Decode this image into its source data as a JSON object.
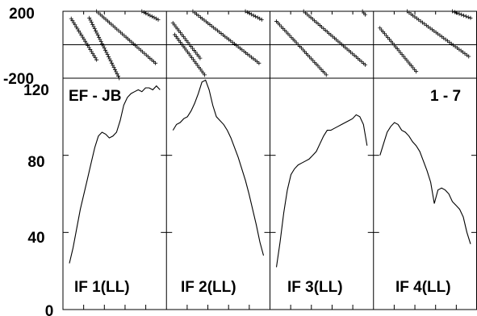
{
  "chart_data": {
    "type": "line",
    "baseline_label": "EF - JB",
    "channel_label": "1 - 7",
    "phase_axis": {
      "ylim": [
        -200,
        200
      ],
      "ticks": [
        "200",
        "-200"
      ]
    },
    "amp_axis": {
      "ylim": [
        0,
        120
      ],
      "ticks": [
        "120",
        "80",
        "40",
        "0"
      ]
    },
    "panels": [
      {
        "name": "IF 1(LL)",
        "amp_x": [
          0,
          0.04,
          0.08,
          0.12,
          0.16,
          0.2,
          0.24,
          0.28,
          0.32,
          0.36,
          0.4,
          0.44,
          0.48,
          0.52,
          0.56,
          0.6,
          0.64,
          0.68,
          0.72,
          0.76,
          0.8,
          0.84,
          0.88,
          0.92,
          0.96,
          1.0
        ],
        "amp_y": [
          24,
          32,
          42,
          52,
          60,
          68,
          76,
          84,
          90,
          92,
          91,
          89,
          90,
          92,
          98,
          106,
          110,
          112,
          113,
          114,
          113,
          115,
          115,
          114,
          116,
          114
        ],
        "phase_segments": [
          [
            [
              0.02,
              156
            ],
            [
              0.3,
              -90
            ]
          ],
          [
            [
              0.22,
              160
            ],
            [
              0.55,
              -200
            ]
          ],
          [
            [
              0.3,
              200
            ],
            [
              0.95,
              -110
            ]
          ],
          [
            [
              0.8,
              200
            ],
            [
              0.98,
              150
            ]
          ]
        ]
      },
      {
        "name": "IF 2(LL)",
        "amp_x": [
          0,
          0.04,
          0.08,
          0.12,
          0.16,
          0.2,
          0.24,
          0.28,
          0.32,
          0.36,
          0.4,
          0.44,
          0.48,
          0.52,
          0.56,
          0.6,
          0.64,
          0.68,
          0.72,
          0.76,
          0.8,
          0.84,
          0.88,
          0.92,
          0.96,
          1.0
        ],
        "amp_y": [
          93,
          96,
          97,
          99,
          100,
          103,
          107,
          112,
          118,
          119,
          114,
          106,
          100,
          98,
          96,
          93,
          89,
          84,
          79,
          73,
          67,
          60,
          52,
          44,
          35,
          28
        ],
        "phase_segments": [
          [
            [
              0.0,
              130
            ],
            [
              0.3,
              -80
            ]
          ],
          [
            [
              0.02,
              60
            ],
            [
              0.35,
              -180
            ]
          ],
          [
            [
              0.22,
              200
            ],
            [
              0.95,
              -110
            ]
          ],
          [
            [
              0.8,
              200
            ],
            [
              0.98,
              150
            ]
          ]
        ]
      },
      {
        "name": "IF 3(LL)",
        "amp_x": [
          0,
          0.04,
          0.08,
          0.12,
          0.16,
          0.2,
          0.24,
          0.28,
          0.32,
          0.36,
          0.4,
          0.44,
          0.48,
          0.52,
          0.56,
          0.6,
          0.64,
          0.68,
          0.72,
          0.76,
          0.8,
          0.84,
          0.88,
          0.92,
          0.96,
          1.0
        ],
        "amp_y": [
          22,
          35,
          50,
          62,
          70,
          73,
          75,
          76,
          77,
          78,
          80,
          82,
          86,
          90,
          93,
          93,
          94,
          95,
          96,
          97,
          98,
          99,
          101,
          100,
          96,
          85
        ],
        "phase_segments": [
          [
            [
              0.0,
              140
            ],
            [
              0.55,
              -180
            ]
          ],
          [
            [
              0.3,
              200
            ],
            [
              0.98,
              -120
            ]
          ],
          [
            [
              0.95,
              200
            ],
            [
              0.98,
              180
            ]
          ]
        ]
      },
      {
        "name": "IF 4(LL)",
        "amp_x": [
          0,
          0.04,
          0.08,
          0.12,
          0.16,
          0.2,
          0.24,
          0.28,
          0.32,
          0.36,
          0.4,
          0.44,
          0.48,
          0.52,
          0.56,
          0.6,
          0.64,
          0.68,
          0.72,
          0.76,
          0.8,
          0.84,
          0.88,
          0.92,
          0.96,
          1.0
        ],
        "amp_y": [
          80,
          86,
          92,
          95,
          97,
          96,
          93,
          92,
          90,
          87,
          85,
          82,
          77,
          72,
          66,
          55,
          62,
          63,
          62,
          60,
          56,
          54,
          52,
          48,
          40,
          34
        ],
        "phase_segments": [
          [
            [
              0.0,
              100
            ],
            [
              0.4,
              -160
            ]
          ],
          [
            [
              0.3,
              200
            ],
            [
              0.98,
              -70
            ]
          ],
          [
            [
              0.8,
              200
            ],
            [
              1.0,
              160
            ]
          ]
        ]
      }
    ]
  }
}
